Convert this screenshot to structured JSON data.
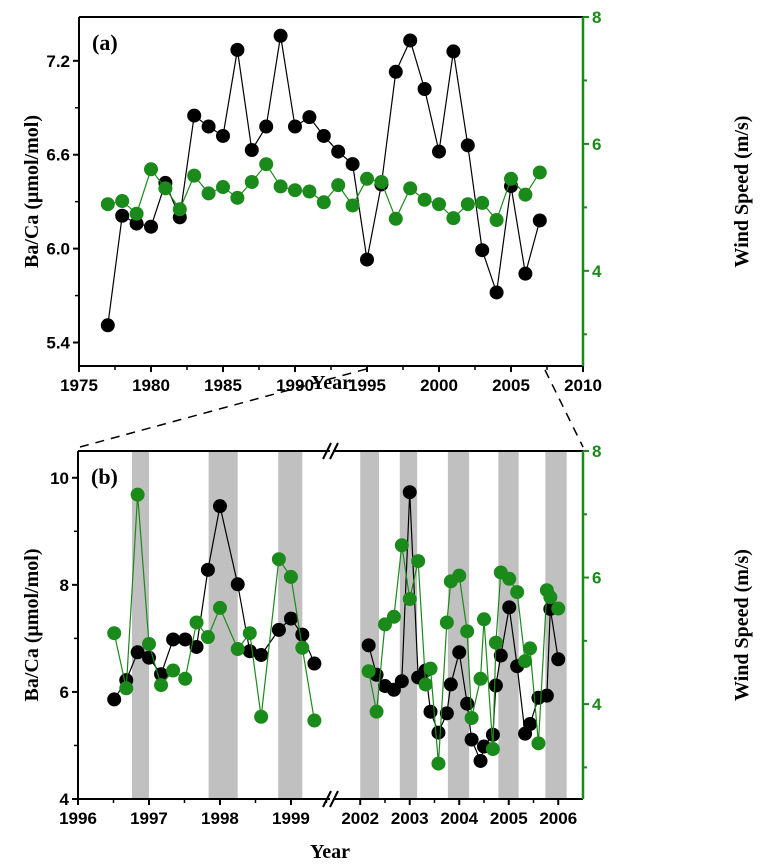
{
  "colors": {
    "baca": "#000000",
    "wind": "#1a8a1a",
    "band": "#c0c0c0"
  },
  "chart_data": [
    {
      "type": "line",
      "panel_label": "(a)",
      "xlabel": "Year",
      "ylabel": "Ba/Ca (μmol/mol)",
      "y2label": "Wind Speed (m/s)",
      "xlim": [
        1975,
        2010
      ],
      "ylim": [
        5.25,
        7.48
      ],
      "y2lim": [
        2.5,
        8
      ],
      "xticks": [
        "1975",
        "1980",
        "1985",
        "1990",
        "1995",
        "2000",
        "2005",
        "2010"
      ],
      "yticks": [
        "5.4",
        "6.0",
        "6.6",
        "7.2"
      ],
      "y2ticks": [
        "4",
        "6",
        "8"
      ],
      "x": [
        1977,
        1978,
        1979,
        1980,
        1981,
        1982,
        1983,
        1984,
        1985,
        1986,
        1987,
        1988,
        1989,
        1990,
        1991,
        1992,
        1993,
        1994,
        1995,
        1996,
        1997,
        1998,
        1999,
        2000,
        2001,
        2002,
        2003,
        2004,
        2005,
        2006,
        2007
      ],
      "series": [
        {
          "name": "Ba/Ca",
          "axis": "left",
          "values": [
            5.51,
            6.21,
            6.16,
            6.14,
            6.42,
            6.2,
            6.85,
            6.78,
            6.72,
            7.27,
            6.63,
            6.78,
            7.36,
            6.78,
            6.84,
            6.72,
            6.62,
            6.54,
            5.93,
            6.41,
            7.13,
            7.33,
            7.02,
            6.62,
            7.26,
            6.66,
            5.99,
            5.72,
            6.4,
            5.84,
            6.18
          ]
        },
        {
          "name": "Wind Speed",
          "axis": "right",
          "values": [
            5.05,
            5.1,
            4.9,
            5.6,
            5.3,
            4.97,
            5.5,
            5.22,
            5.32,
            5.15,
            5.4,
            5.68,
            5.33,
            5.27,
            5.25,
            5.08,
            5.35,
            5.03,
            5.45,
            5.4,
            4.82,
            5.3,
            5.12,
            5.05,
            4.83,
            5.05,
            5.07,
            4.8,
            5.45,
            5.2,
            5.55
          ]
        }
      ]
    },
    {
      "type": "line",
      "panel_label": "(b)",
      "xlabel": "Year",
      "ylabel": "Ba/Ca (μmol/mol)",
      "y2label": "Wind Speed (m/s)",
      "x_segments": [
        [
          1996,
          1999.55
        ],
        [
          2001.45,
          2006.5
        ]
      ],
      "ylim": [
        4,
        10.5
      ],
      "y2lim": [
        2.5,
        8
      ],
      "xticks": [
        [
          "1996",
          "1997",
          "1998",
          "1999"
        ],
        [
          "2002",
          "2003",
          "2004",
          "2005",
          "2006"
        ]
      ],
      "yticks": [
        "4",
        "6",
        "8",
        "10"
      ],
      "y2ticks": [
        "4",
        "6",
        "8"
      ],
      "shaded_periods": [
        [
          1996.76,
          1997.0
        ],
        [
          1997.84,
          1998.25
        ],
        [
          1998.82,
          1999.16
        ],
        [
          2002.0,
          2002.38
        ],
        [
          2002.8,
          2003.15
        ],
        [
          2003.77,
          2004.2
        ],
        [
          2004.79,
          2005.2
        ],
        [
          2005.74,
          2006.17
        ]
      ],
      "segments": [
        {
          "x": [
            1996.51,
            1996.68,
            1996.84,
            1997.0,
            1997.17,
            1997.34,
            1997.51,
            1997.67,
            1997.83,
            1998.0,
            1998.25,
            1998.42,
            1998.58,
            1998.83,
            1999.0,
            1999.16,
            1999.33
          ],
          "baca": [
            5.86,
            6.22,
            6.74,
            6.64,
            6.33,
            6.98,
            6.98,
            6.84,
            8.28,
            9.47,
            8.01,
            6.76,
            6.69,
            7.16,
            7.37,
            7.07,
            6.53
          ],
          "wind": [
            5.12,
            4.25,
            7.31,
            4.95,
            4.3,
            4.53,
            4.4,
            5.29,
            5.06,
            5.52,
            4.87,
            5.12,
            3.8,
            6.29,
            6.01,
            4.89,
            3.74
          ]
        },
        {
          "x": [
            2002.17,
            2002.33,
            2002.5,
            2002.68,
            2002.84,
            2003.0,
            2003.17,
            2003.32,
            2003.42,
            2003.58,
            2003.75,
            2003.83,
            2004.0,
            2004.16,
            2004.25,
            2004.43,
            2004.5,
            2004.68,
            2004.74,
            2004.84,
            2005.01,
            2005.17,
            2005.33,
            2005.43,
            2005.6,
            2005.77,
            2005.84,
            2006.0
          ],
          "baca": [
            6.87,
            6.32,
            6.11,
            6.04,
            6.2,
            9.73,
            6.27,
            6.4,
            5.63,
            5.24,
            5.6,
            6.14,
            6.74,
            5.78,
            5.11,
            4.71,
            4.98,
            5.2,
            6.12,
            6.68,
            7.58,
            6.48,
            5.22,
            5.4,
            5.89,
            5.93,
            7.55,
            6.61
          ],
          "wind": [
            4.52,
            3.88,
            5.26,
            5.38,
            6.51,
            5.66,
            6.26,
            4.31,
            4.56,
            3.06,
            5.29,
            5.94,
            6.03,
            5.15,
            3.78,
            4.4,
            5.34,
            3.29,
            4.97,
            6.08,
            5.98,
            5.77,
            4.68,
            4.88,
            3.38,
            5.8,
            5.69,
            5.51
          ]
        }
      ]
    }
  ]
}
